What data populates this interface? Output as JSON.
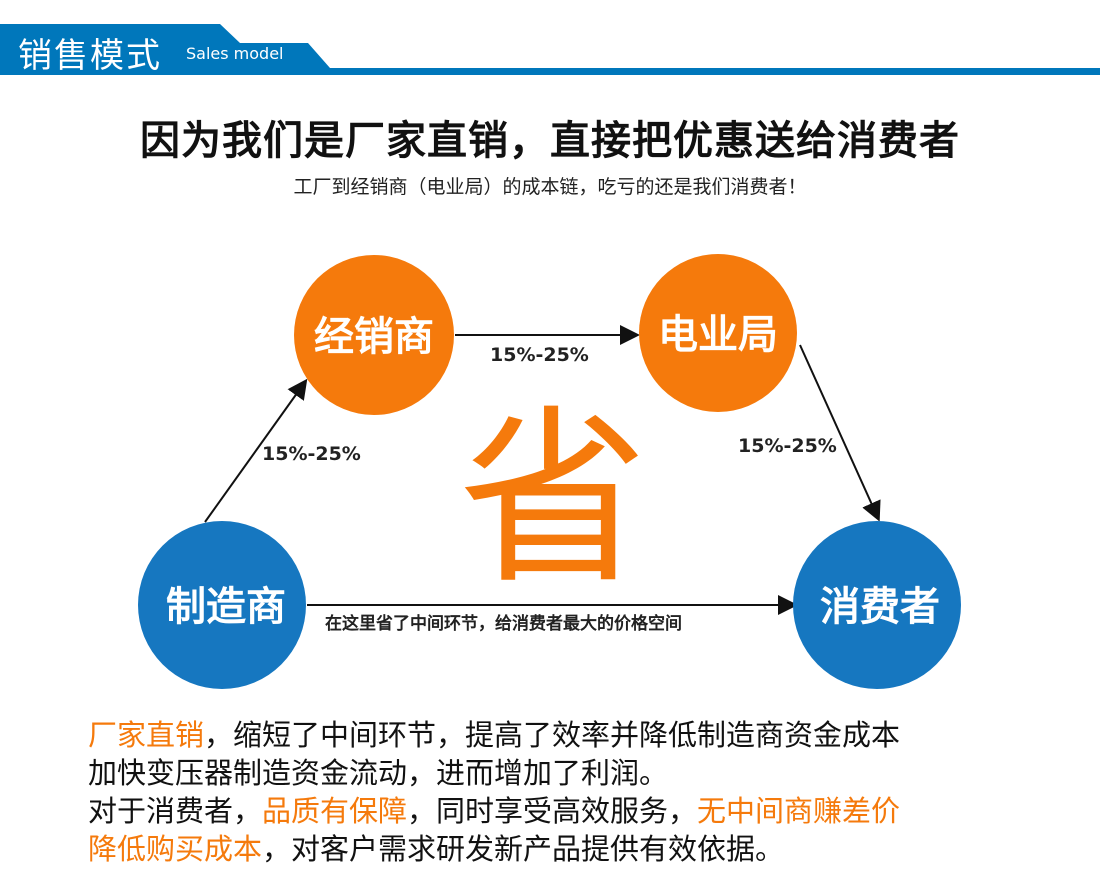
{
  "header": {
    "title": "销售模式",
    "subtitle": "Sales model",
    "color": "#0077bb"
  },
  "headline": "因为我们是厂家直销，直接把优惠送给消费者",
  "subheadline": "工厂到经销商（电业局）的成本链，吃亏的还是我们消费者！",
  "diagram": {
    "nodes": {
      "dealer": "经销商",
      "utility": "电业局",
      "manufacturer": "制造商",
      "consumer": "消费者"
    },
    "edges": {
      "manufacturer_dealer": "15%-25%",
      "dealer_utility": "15%-25%",
      "utility_consumer": "15%-25%",
      "manufacturer_consumer": "在这里省了中间环节，给消费者最大的价格空间"
    },
    "center": "省",
    "colors": {
      "orange": "#f57a0c",
      "blue": "#1677c0"
    }
  },
  "paragraphs": {
    "p1_hl": "厂家直销",
    "p1_a": "，缩短了中间环节，提高了效率并降低制造商资金成本",
    "p1_b": "加快变压器制造资金流动，进而增加了利润。",
    "p2_a": "对于消费者，",
    "p2_hl1": "品质有保障",
    "p2_b": "，同时享受高效服务，",
    "p2_hl2": "无中间商赚差价",
    "p2_hl3": "降低购买成本",
    "p2_c": "，对客户需求研发新产品提供有效依据。"
  }
}
